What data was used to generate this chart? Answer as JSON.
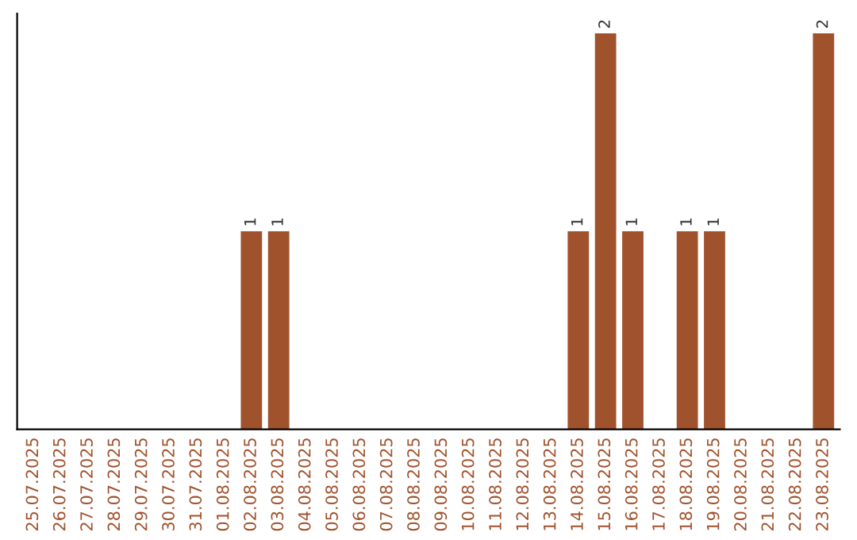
{
  "chart_data": {
    "type": "bar",
    "categories": [
      "25.07.2025",
      "26.07.2025",
      "27.07.2025",
      "28.07.2025",
      "29.07.2025",
      "30.07.2025",
      "31.07.2025",
      "01.08.2025",
      "02.08.2025",
      "03.08.2025",
      "04.08.2025",
      "05.08.2025",
      "06.08.2025",
      "07.08.2025",
      "08.08.2025",
      "09.08.2025",
      "10.08.2025",
      "11.08.2025",
      "12.08.2025",
      "13.08.2025",
      "14.08.2025",
      "15.08.2025",
      "16.08.2025",
      "17.08.2025",
      "18.08.2025",
      "19.08.2025",
      "20.08.2025",
      "21.08.2025",
      "22.08.2025",
      "23.08.2025"
    ],
    "values": [
      0,
      0,
      0,
      0,
      0,
      0,
      0,
      0,
      1,
      1,
      0,
      0,
      0,
      0,
      0,
      0,
      0,
      0,
      0,
      0,
      1,
      2,
      1,
      0,
      1,
      1,
      0,
      0,
      0,
      2
    ],
    "value_labels": [
      null,
      null,
      null,
      null,
      null,
      null,
      null,
      null,
      "1",
      "1",
      null,
      null,
      null,
      null,
      null,
      null,
      null,
      null,
      null,
      null,
      "1",
      "2",
      "1",
      null,
      "1",
      "1",
      null,
      null,
      null,
      "2"
    ],
    "color": "#a0522d",
    "tick_labels": "x",
    "grid": false
  }
}
